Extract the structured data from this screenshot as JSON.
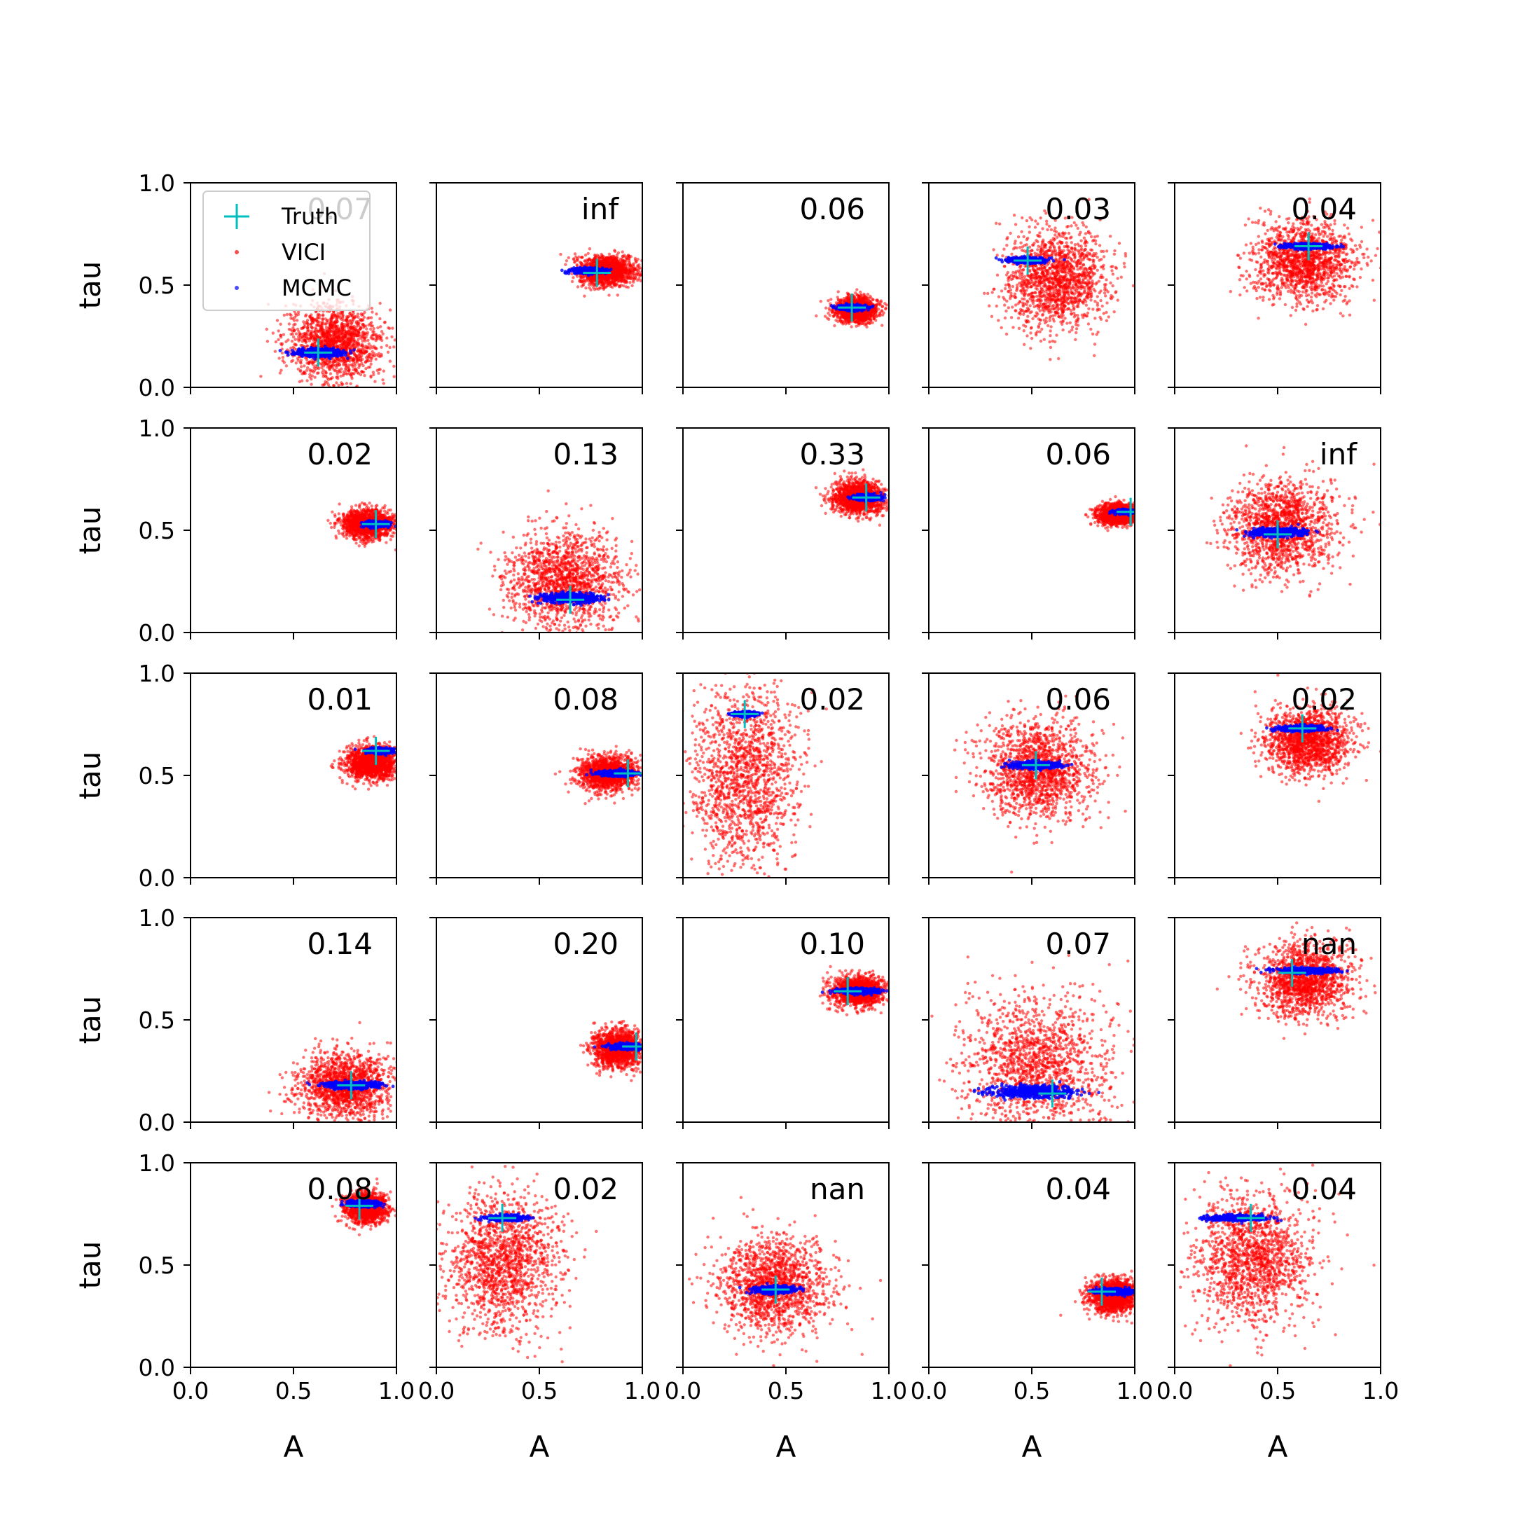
{
  "chart_data": {
    "type": "scatter",
    "layout": {
      "rows": 5,
      "cols": 5
    },
    "xlabel": "A",
    "ylabel": "tau",
    "xlim": [
      0,
      1
    ],
    "ylim": [
      0,
      1
    ],
    "xticks": [
      "0.0",
      "0.5",
      "1.0"
    ],
    "yticks": [
      "0.0",
      "0.5",
      "1.0"
    ],
    "grid": false,
    "legend": {
      "location": "top-left of first panel",
      "entries": [
        {
          "name": "Truth",
          "marker": "plus",
          "color": "#00bfbf"
        },
        {
          "name": "VICI",
          "marker": "dot",
          "color": "#ff0000"
        },
        {
          "name": "MCMC",
          "marker": "dot",
          "color": "#0000ff"
        }
      ]
    },
    "colors": {
      "vici": "#ff0000",
      "mcmc": "#0000ff",
      "truth": "#00bfbf"
    },
    "panels": [
      {
        "label": "0.07",
        "truth": [
          0.62,
          0.17
        ],
        "vici": {
          "center": [
            0.7,
            0.22
          ],
          "spread": [
            0.11,
            0.09
          ]
        },
        "mcmc": {
          "center": [
            0.62,
            0.17
          ],
          "spread": [
            0.1,
            0.012
          ]
        }
      },
      {
        "label": "inf",
        "truth": [
          0.78,
          0.56
        ],
        "vici": {
          "center": [
            0.83,
            0.57
          ],
          "spread": [
            0.07,
            0.035
          ]
        },
        "mcmc": {
          "center": [
            0.74,
            0.57
          ],
          "spread": [
            0.07,
            0.008
          ]
        }
      },
      {
        "label": "0.06",
        "truth": [
          0.82,
          0.39
        ],
        "vici": {
          "center": [
            0.84,
            0.38
          ],
          "spread": [
            0.05,
            0.03
          ]
        },
        "mcmc": {
          "center": [
            0.82,
            0.39
          ],
          "spread": [
            0.06,
            0.008
          ]
        }
      },
      {
        "label": "0.03",
        "truth": [
          0.48,
          0.62
        ],
        "vici": {
          "center": [
            0.62,
            0.53
          ],
          "spread": [
            0.12,
            0.12
          ]
        },
        "mcmc": {
          "center": [
            0.48,
            0.62
          ],
          "spread": [
            0.08,
            0.008
          ]
        }
      },
      {
        "label": "0.04",
        "truth": [
          0.65,
          0.69
        ],
        "vici": {
          "center": [
            0.63,
            0.62
          ],
          "spread": [
            0.12,
            0.1
          ]
        },
        "mcmc": {
          "center": [
            0.65,
            0.69
          ],
          "spread": [
            0.1,
            0.008
          ]
        }
      },
      {
        "label": "0.02",
        "truth": [
          0.9,
          0.53
        ],
        "vici": {
          "center": [
            0.86,
            0.53
          ],
          "spread": [
            0.06,
            0.035
          ]
        },
        "mcmc": {
          "center": [
            0.9,
            0.53
          ],
          "spread": [
            0.05,
            0.008
          ]
        }
      },
      {
        "label": "0.13",
        "truth": [
          0.65,
          0.16
        ],
        "vici": {
          "center": [
            0.62,
            0.25
          ],
          "spread": [
            0.14,
            0.12
          ]
        },
        "mcmc": {
          "center": [
            0.65,
            0.17
          ],
          "spread": [
            0.13,
            0.015
          ]
        }
      },
      {
        "label": "0.33",
        "truth": [
          0.89,
          0.66
        ],
        "vici": {
          "center": [
            0.85,
            0.66
          ],
          "spread": [
            0.06,
            0.04
          ]
        },
        "mcmc": {
          "center": [
            0.89,
            0.66
          ],
          "spread": [
            0.06,
            0.008
          ]
        }
      },
      {
        "label": "0.06",
        "truth": [
          0.98,
          0.59
        ],
        "vici": {
          "center": [
            0.92,
            0.58
          ],
          "spread": [
            0.05,
            0.025
          ]
        },
        "mcmc": {
          "center": [
            0.96,
            0.59
          ],
          "spread": [
            0.05,
            0.006
          ]
        }
      },
      {
        "label": "inf",
        "truth": [
          0.5,
          0.48
        ],
        "vici": {
          "center": [
            0.52,
            0.51
          ],
          "spread": [
            0.13,
            0.11
          ]
        },
        "mcmc": {
          "center": [
            0.5,
            0.49
          ],
          "spread": [
            0.12,
            0.012
          ]
        }
      },
      {
        "label": "0.01",
        "truth": [
          0.9,
          0.62
        ],
        "vici": {
          "center": [
            0.88,
            0.56
          ],
          "spread": [
            0.06,
            0.04
          ]
        },
        "mcmc": {
          "center": [
            0.92,
            0.62
          ],
          "spread": [
            0.05,
            0.008
          ]
        }
      },
      {
        "label": "0.08",
        "truth": [
          0.93,
          0.51
        ],
        "vici": {
          "center": [
            0.83,
            0.51
          ],
          "spread": [
            0.07,
            0.04
          ]
        },
        "mcmc": {
          "center": [
            0.88,
            0.51
          ],
          "spread": [
            0.08,
            0.008
          ]
        }
      },
      {
        "label": "0.02",
        "truth": [
          0.3,
          0.8
        ],
        "vici": {
          "center": [
            0.3,
            0.5
          ],
          "spread": [
            0.13,
            0.22
          ]
        },
        "mcmc": {
          "center": [
            0.3,
            0.8
          ],
          "spread": [
            0.05,
            0.006
          ]
        }
      },
      {
        "label": "0.06",
        "truth": [
          0.52,
          0.55
        ],
        "vici": {
          "center": [
            0.53,
            0.53
          ],
          "spread": [
            0.13,
            0.12
          ]
        },
        "mcmc": {
          "center": [
            0.52,
            0.55
          ],
          "spread": [
            0.1,
            0.01
          ]
        }
      },
      {
        "label": "0.02",
        "truth": [
          0.62,
          0.73
        ],
        "vici": {
          "center": [
            0.65,
            0.67
          ],
          "spread": [
            0.1,
            0.08
          ]
        },
        "mcmc": {
          "center": [
            0.62,
            0.73
          ],
          "spread": [
            0.1,
            0.008
          ]
        }
      },
      {
        "label": "0.14",
        "truth": [
          0.78,
          0.18
        ],
        "vici": {
          "center": [
            0.75,
            0.18
          ],
          "spread": [
            0.11,
            0.08
          ]
        },
        "mcmc": {
          "center": [
            0.78,
            0.18
          ],
          "spread": [
            0.12,
            0.01
          ]
        }
      },
      {
        "label": "0.20",
        "truth": [
          0.97,
          0.37
        ],
        "vici": {
          "center": [
            0.88,
            0.36
          ],
          "spread": [
            0.06,
            0.045
          ]
        },
        "mcmc": {
          "center": [
            0.92,
            0.37
          ],
          "spread": [
            0.07,
            0.008
          ]
        }
      },
      {
        "label": "0.10",
        "truth": [
          0.8,
          0.64
        ],
        "vici": {
          "center": [
            0.85,
            0.64
          ],
          "spread": [
            0.06,
            0.035
          ]
        },
        "mcmc": {
          "center": [
            0.85,
            0.64
          ],
          "spread": [
            0.09,
            0.008
          ]
        }
      },
      {
        "label": "0.07",
        "truth": [
          0.6,
          0.14
        ],
        "vici": {
          "center": [
            0.52,
            0.28
          ],
          "spread": [
            0.18,
            0.17
          ]
        },
        "mcmc": {
          "center": [
            0.5,
            0.15
          ],
          "spread": [
            0.18,
            0.018
          ]
        }
      },
      {
        "label": "nan",
        "truth": [
          0.57,
          0.73
        ],
        "vici": {
          "center": [
            0.63,
            0.7
          ],
          "spread": [
            0.11,
            0.09
          ]
        },
        "mcmc": {
          "center": [
            0.64,
            0.74
          ],
          "spread": [
            0.12,
            0.008
          ]
        }
      },
      {
        "label": "0.08",
        "truth": [
          0.82,
          0.79
        ],
        "vici": {
          "center": [
            0.85,
            0.78
          ],
          "spread": [
            0.05,
            0.035
          ]
        },
        "mcmc": {
          "center": [
            0.84,
            0.8
          ],
          "spread": [
            0.07,
            0.008
          ]
        }
      },
      {
        "label": "0.02",
        "truth": [
          0.32,
          0.73
        ],
        "vici": {
          "center": [
            0.32,
            0.52
          ],
          "spread": [
            0.14,
            0.17
          ]
        },
        "mcmc": {
          "center": [
            0.34,
            0.73
          ],
          "spread": [
            0.08,
            0.008
          ]
        }
      },
      {
        "label": "nan",
        "truth": [
          0.45,
          0.38
        ],
        "vici": {
          "center": [
            0.44,
            0.4
          ],
          "spread": [
            0.13,
            0.12
          ]
        },
        "mcmc": {
          "center": [
            0.45,
            0.38
          ],
          "spread": [
            0.09,
            0.01
          ]
        }
      },
      {
        "label": "0.04",
        "truth": [
          0.84,
          0.37
        ],
        "vici": {
          "center": [
            0.9,
            0.35
          ],
          "spread": [
            0.06,
            0.04
          ]
        },
        "mcmc": {
          "center": [
            0.9,
            0.37
          ],
          "spread": [
            0.08,
            0.008
          ]
        }
      },
      {
        "label": "0.04",
        "truth": [
          0.37,
          0.73
        ],
        "vici": {
          "center": [
            0.38,
            0.53
          ],
          "spread": [
            0.14,
            0.15
          ]
        },
        "mcmc": {
          "center": [
            0.3,
            0.73
          ],
          "spread": [
            0.12,
            0.008
          ]
        }
      }
    ]
  }
}
